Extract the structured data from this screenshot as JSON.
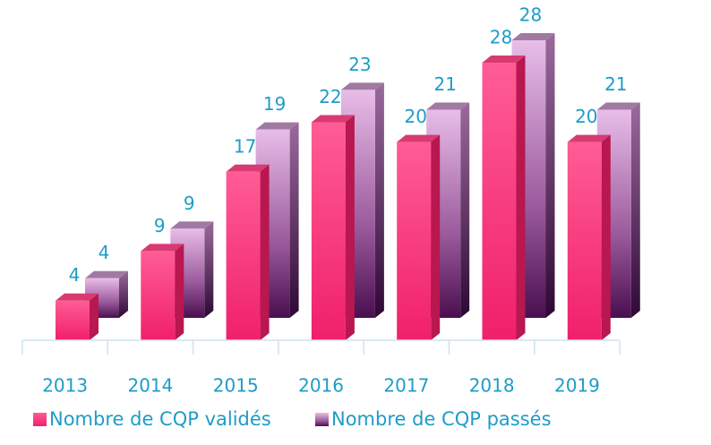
{
  "chart_data": {
    "type": "bar3d",
    "categories": [
      "2013",
      "2014",
      "2015",
      "2016",
      "2017",
      "2018",
      "2019"
    ],
    "series": [
      {
        "name": "Nombre de CQP validés",
        "color": "#f0306e",
        "values": [
          4,
          9,
          17,
          22,
          20,
          28,
          20
        ]
      },
      {
        "name": "Nombre de CQP passés",
        "color": "#a85aa8",
        "values": [
          4,
          9,
          19,
          23,
          21,
          28,
          21
        ]
      }
    ]
  }
}
